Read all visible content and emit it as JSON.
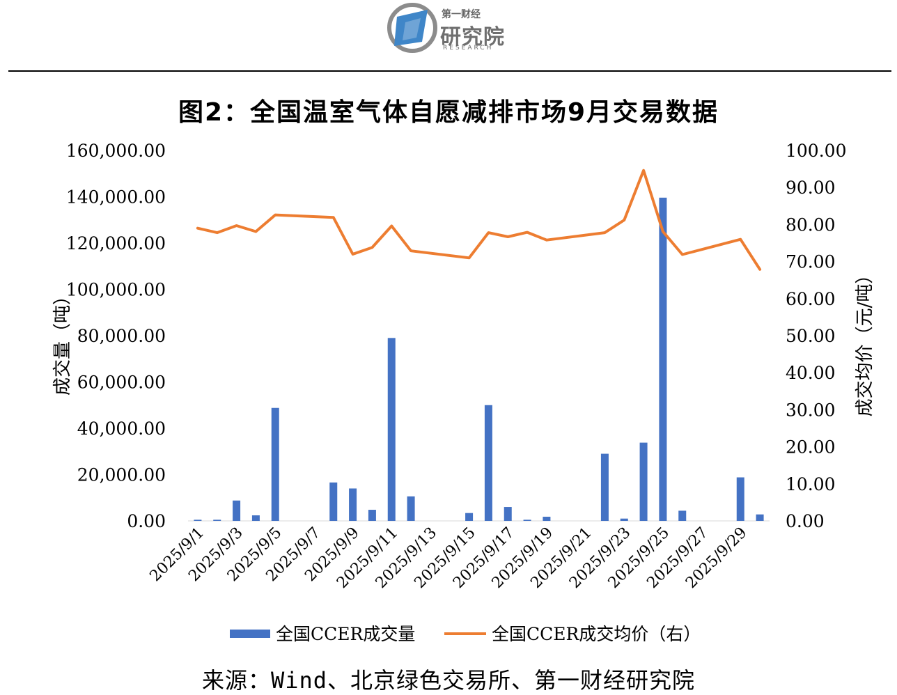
{
  "logo": {
    "line1": "第一财经",
    "line2": "研究院",
    "line3": "RESEARCH",
    "colors": {
      "blue": "#3f86c8",
      "gray": "#6f6f6f"
    }
  },
  "title": "图2：全国温室气体自愿减排市场9月交易数据",
  "source": "来源：Wind、北京绿色交易所、第一财经研究院",
  "chart_data": {
    "type": "bar",
    "title": "图2：全国温室气体自愿减排市场9月交易数据",
    "x": [
      "2025/9/1",
      "2025/9/2",
      "2025/9/3",
      "2025/9/4",
      "2025/9/5",
      "2025/9/6",
      "2025/9/7",
      "2025/9/8",
      "2025/9/9",
      "2025/9/10",
      "2025/9/11",
      "2025/9/12",
      "2025/9/13",
      "2025/9/14",
      "2025/9/15",
      "2025/9/16",
      "2025/9/17",
      "2025/9/18",
      "2025/9/19",
      "2025/9/20",
      "2025/9/21",
      "2025/9/22",
      "2025/9/23",
      "2025/9/24",
      "2025/9/25",
      "2025/9/26",
      "2025/9/27",
      "2025/9/28",
      "2025/9/29",
      "2025/9/30"
    ],
    "xtick_labels": [
      "2025/9/1",
      "2025/9/3",
      "2025/9/5",
      "2025/9/7",
      "2025/9/9",
      "2025/9/11",
      "2025/9/13",
      "2025/9/15",
      "2025/9/17",
      "2025/9/19",
      "2025/9/21",
      "2025/9/23",
      "2025/9/25",
      "2025/9/27",
      "2025/9/29"
    ],
    "ylabel": "成交量（吨）",
    "y2label": "成交均价（元/吨）",
    "ylim": [
      0,
      160000
    ],
    "y2lim": [
      0,
      100
    ],
    "yticks": [
      "0.00",
      "20,000.00",
      "40,000.00",
      "60,000.00",
      "80,000.00",
      "100,000.00",
      "120,000.00",
      "140,000.00",
      "160,000.00"
    ],
    "y2ticks": [
      "0.00",
      "10.00",
      "20.00",
      "30.00",
      "40.00",
      "50.00",
      "60.00",
      "70.00",
      "80.00",
      "90.00",
      "100.00"
    ],
    "grid": false,
    "legend_position": "bottom",
    "series": [
      {
        "name": "全国CCER成交量",
        "kind": "bar",
        "axis": "left",
        "color": "#4472c4",
        "values": [
          500,
          500,
          8800,
          2400,
          48800,
          0,
          0,
          16600,
          14000,
          4800,
          79000,
          10600,
          0,
          0,
          3400,
          50000,
          6000,
          500,
          1800,
          0,
          0,
          29000,
          1000,
          33800,
          139600,
          4400,
          0,
          0,
          18800,
          2800
        ]
      },
      {
        "name": "全国CCER成交均价（右）",
        "kind": "line",
        "axis": "right",
        "color": "#ed7d31",
        "values": [
          79.0,
          77.8,
          79.7,
          78.1,
          82.6,
          null,
          null,
          81.9,
          72.0,
          73.8,
          79.6,
          72.9,
          null,
          null,
          71.0,
          77.8,
          76.7,
          77.9,
          75.8,
          null,
          null,
          77.8,
          81.2,
          94.6,
          78.1,
          71.9,
          null,
          null,
          76.0,
          67.9
        ]
      }
    ]
  }
}
